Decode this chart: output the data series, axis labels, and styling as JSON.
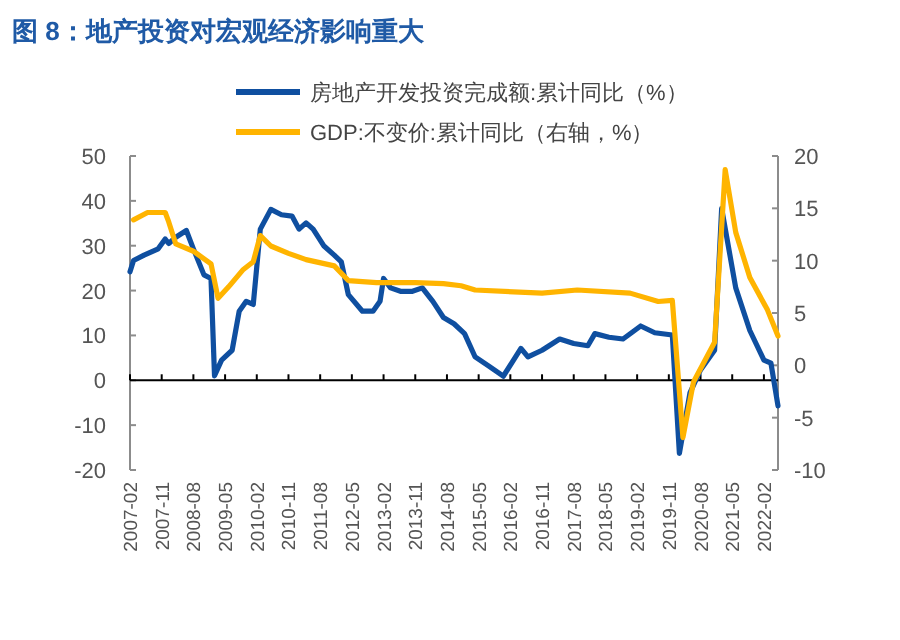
{
  "chart_data": {
    "type": "line",
    "title": "图 8：地产投资对宏观经济影响重大",
    "legend": "top",
    "marker": "none",
    "xlim": [
      "2007-02",
      "2022-06"
    ],
    "xticks": [
      "2007-02",
      "2007-11",
      "2008-08",
      "2009-05",
      "2010-02",
      "2010-11",
      "2011-08",
      "2012-05",
      "2013-02",
      "2013-11",
      "2014-08",
      "2015-05",
      "2016-02",
      "2016-11",
      "2017-08",
      "2018-05",
      "2019-02",
      "2019-11",
      "2020-08",
      "2021-05",
      "2022-02"
    ],
    "ylim": [
      -20,
      50
    ],
    "yticks": [
      -20,
      -10,
      0,
      10,
      20,
      30,
      40,
      50
    ],
    "y2lim": [
      -10,
      20
    ],
    "y2ticks": [
      -10,
      -5,
      0,
      5,
      10,
      15,
      20
    ],
    "series": [
      {
        "name": "房地产开发投资完成额:累计同比（%）",
        "color": "#0f4fa0",
        "x": [
          "2007-02",
          "2007-03",
          "2007-06",
          "2007-10",
          "2007-12",
          "2008-01",
          "2008-03",
          "2008-06",
          "2008-08",
          "2008-11",
          "2009-01",
          "2009-02",
          "2009-04",
          "2009-07",
          "2009-09",
          "2009-11",
          "2010-01",
          "2010-03",
          "2010-06",
          "2010-09",
          "2010-12",
          "2011-02",
          "2011-04",
          "2011-06",
          "2011-09",
          "2011-12",
          "2012-02",
          "2012-04",
          "2012-08",
          "2012-11",
          "2013-01",
          "2013-02",
          "2013-04",
          "2013-07",
          "2013-10",
          "2014-01",
          "2014-04",
          "2014-07",
          "2014-10",
          "2015-01",
          "2015-04",
          "2015-08",
          "2015-12",
          "2016-05",
          "2016-07",
          "2016-11",
          "2017-04",
          "2017-08",
          "2017-12",
          "2018-02",
          "2018-06",
          "2018-10",
          "2019-03",
          "2019-07",
          "2019-12",
          "2020-02",
          "2020-05",
          "2020-08",
          "2020-12",
          "2021-02",
          "2021-06",
          "2021-10",
          "2022-02",
          "2022-04",
          "2022-06"
        ],
        "values": [
          24.2,
          26.7,
          27.9,
          29.3,
          31.5,
          30.5,
          31.9,
          33.4,
          29.3,
          23.5,
          22.7,
          1.0,
          4.5,
          6.7,
          15.4,
          17.6,
          16.9,
          33.7,
          38.1,
          36.9,
          36.6,
          33.7,
          35.1,
          33.7,
          30.0,
          27.9,
          26.4,
          19.1,
          15.4,
          15.4,
          17.6,
          22.7,
          20.6,
          19.8,
          19.8,
          20.6,
          17.6,
          14.0,
          12.6,
          10.4,
          5.2,
          3.1,
          0.9,
          7.1,
          5.2,
          6.7,
          9.2,
          8.2,
          7.7,
          10.4,
          9.6,
          9.2,
          12.1,
          10.6,
          10.1,
          -16.3,
          -2.8,
          2.3,
          6.7,
          38.3,
          20.6,
          11.1,
          4.5,
          3.8,
          -5.7
        ]
      },
      {
        "name": "GDP:不变价:累计同比（右轴，%）",
        "color": "#ffb400",
        "axis": "y2",
        "x": [
          "2007-03",
          "2007-07",
          "2007-12",
          "2008-01",
          "2008-03",
          "2008-08",
          "2009-01",
          "2009-03",
          "2009-06",
          "2009-10",
          "2010-01",
          "2010-03",
          "2010-06",
          "2010-11",
          "2011-04",
          "2011-12",
          "2012-04",
          "2012-12",
          "2013-11",
          "2014-07",
          "2014-12",
          "2015-04",
          "2016-11",
          "2017-09",
          "2018-12",
          "2019-08",
          "2019-12",
          "2020-03",
          "2020-06",
          "2020-12",
          "2021-03",
          "2021-06",
          "2021-10",
          "2022-03",
          "2022-06"
        ],
        "values": [
          13.9,
          14.6,
          14.6,
          13.7,
          11.6,
          10.9,
          9.7,
          6.4,
          7.5,
          9.1,
          9.9,
          12.4,
          11.4,
          10.7,
          10.1,
          9.5,
          8.1,
          7.9,
          7.9,
          7.8,
          7.6,
          7.2,
          6.9,
          7.2,
          6.9,
          6.1,
          6.2,
          -6.9,
          -1.6,
          2.2,
          18.7,
          12.7,
          8.4,
          5.3,
          2.8
        ]
      }
    ]
  }
}
